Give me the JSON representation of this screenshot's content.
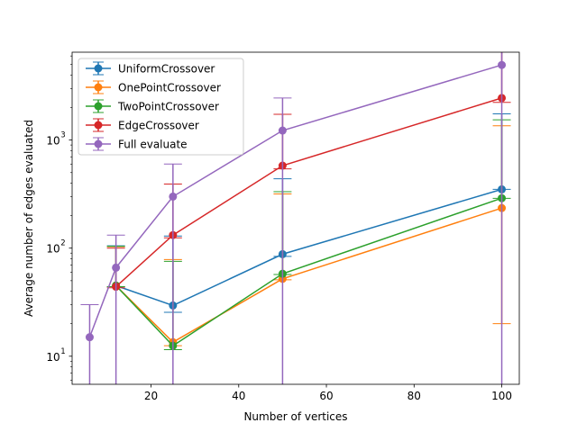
{
  "chart_data": {
    "type": "line",
    "title": "",
    "xlabel": "Number of vertices",
    "ylabel": "Average number of edges evaluated",
    "xlim": [
      2,
      104
    ],
    "ylim": [
      5.5,
      6500
    ],
    "yscale": "log",
    "grid": false,
    "legend_position": "upper left",
    "xticks": [
      20,
      40,
      60,
      80,
      100
    ],
    "xtick_labels": [
      "20",
      "40",
      "60",
      "80",
      "100"
    ],
    "yticks": [
      10,
      100,
      1000
    ],
    "ytick_labels": [
      "10",
      "10",
      "10"
    ],
    "ytick_exponents": [
      "1",
      "2",
      "3"
    ],
    "series": [
      {
        "name": "UniformCrossover",
        "color": "#1f77b4",
        "x": [
          12,
          25,
          50,
          100
        ],
        "y": [
          45,
          29.5,
          88,
          350
        ],
        "yerr_low": [
          1.0,
          4,
          4,
          0.1
        ],
        "yerr_high": [
          60,
          100,
          350,
          1400
        ]
      },
      {
        "name": "OnePointCrossover",
        "color": "#ff7f0e",
        "x": [
          12,
          25,
          50,
          100
        ],
        "y": [
          45,
          13.5,
          52,
          235
        ],
        "yerr_low": [
          1.0,
          1.0,
          1.0,
          215
        ],
        "yerr_high": [
          58,
          65,
          265,
          1120
        ]
      },
      {
        "name": "TwoPointCrossover",
        "color": "#2ca02c",
        "x": [
          12,
          25,
          50,
          100
        ],
        "y": [
          45,
          12.5,
          58,
          290
        ],
        "yerr_low": [
          1.0,
          1.0,
          1.0,
          1.0
        ],
        "yerr_high": [
          59,
          63,
          275,
          1250
        ]
      },
      {
        "name": "EdgeCrossover",
        "color": "#d62728",
        "x": [
          12,
          25,
          50,
          100
        ],
        "y": [
          44,
          132,
          580,
          2450
        ],
        "yerr_low": [
          1.0,
          7.5,
          38,
          220
        ],
        "yerr_high": [
          56,
          260,
          1150,
          4700
        ]
      },
      {
        "name": "Full evaluate",
        "color": "#9467bd",
        "x": [
          6,
          12,
          25,
          50,
          100
        ],
        "y": [
          15,
          66,
          300,
          1225,
          4950
        ],
        "yerr_low": [
          15,
          66,
          300,
          1225,
          4950
        ],
        "yerr_high": [
          15,
          66,
          300,
          1225,
          4950
        ]
      }
    ]
  }
}
